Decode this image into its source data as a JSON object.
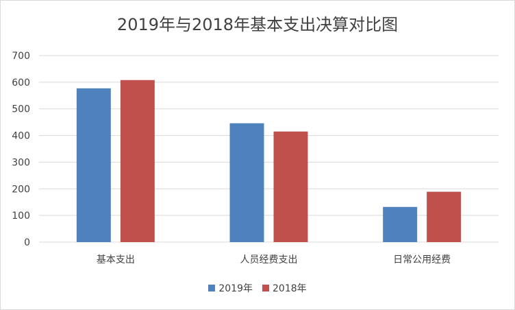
{
  "chart_data": {
    "type": "bar",
    "title": "2019年与2018年基本支出决算对比图",
    "categories": [
      "基本支出",
      "人员经费支出",
      "日常公用经费"
    ],
    "series": [
      {
        "name": "2019年",
        "values": [
          577,
          446,
          132
        ],
        "color": "#4f81bd"
      },
      {
        "name": "2018年",
        "values": [
          608,
          415,
          189
        ],
        "color": "#c0504d"
      }
    ],
    "ylim": [
      0,
      700
    ],
    "yticks": [
      "0",
      "100",
      "200",
      "300",
      "400",
      "500",
      "600",
      "700"
    ],
    "grid": true,
    "legend": "bottom"
  }
}
